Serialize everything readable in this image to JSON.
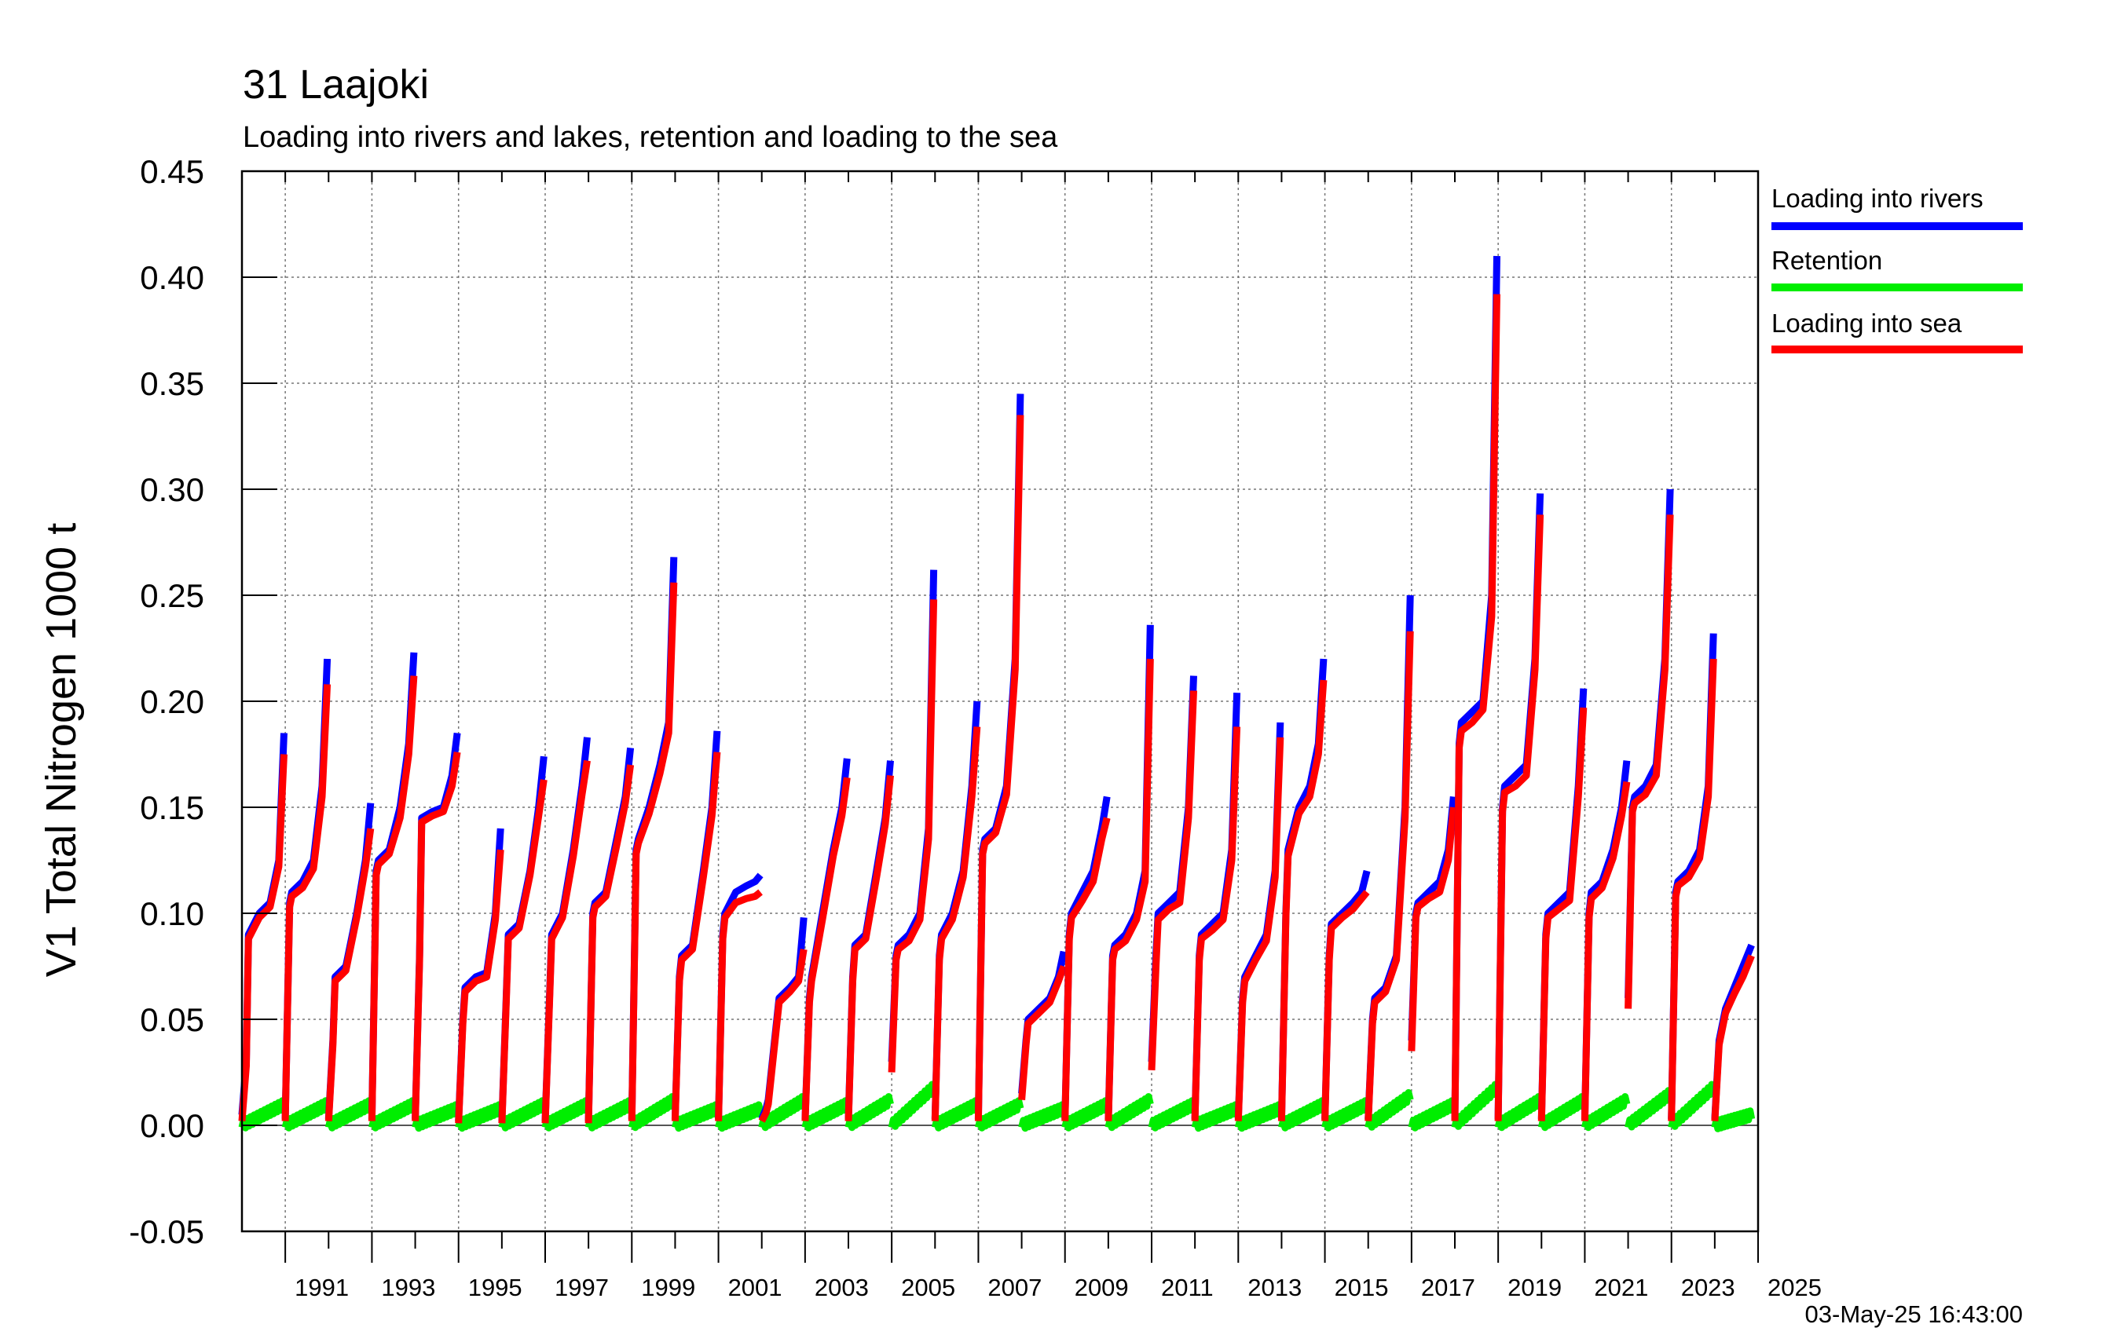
{
  "chart_data": {
    "type": "line",
    "title": "31 Laajoki",
    "subtitle": "Loading into rivers and lakes, retention and loading to the sea",
    "ylabel": "V1 Total Nitrogen 1000 t",
    "xlabel": "",
    "xlim": [
      "1990",
      "2025"
    ],
    "ylim": [
      -0.05,
      0.45
    ],
    "yticks": [
      "0.45",
      "0.40",
      "0.35",
      "0.30",
      "0.25",
      "0.20",
      "0.15",
      "0.10",
      "0.05",
      "0.00",
      "-0.05"
    ],
    "xticks": [
      "1991",
      "1993",
      "1995",
      "1997",
      "1999",
      "2001",
      "2003",
      "2005",
      "2007",
      "2009",
      "2011",
      "2013",
      "2015",
      "2017",
      "2019",
      "2021",
      "2023",
      "2025"
    ],
    "grid": true,
    "legend_position": "right",
    "timestamp": "03-May-25 16:43:00",
    "series": [
      {
        "name": "Loading into rivers",
        "color": "#0000ff"
      },
      {
        "name": "Retention",
        "color": "#00ee00"
      },
      {
        "name": "Loading into sea",
        "color": "#ff0000"
      }
    ],
    "annual_profiles": [
      {
        "year": 1990,
        "rivers": [
          0.005,
          0.03,
          0.09,
          0.1,
          0.105,
          0.125,
          0.185
        ],
        "sea": [
          0.002,
          0.028,
          0.088,
          0.098,
          0.103,
          0.122,
          0.175
        ],
        "ret_end": 0.01
      },
      {
        "year": 1991,
        "rivers": [
          0.003,
          0.105,
          0.11,
          0.115,
          0.125,
          0.16,
          0.22
        ],
        "sea": [
          0.002,
          0.103,
          0.108,
          0.112,
          0.121,
          0.155,
          0.208
        ],
        "ret_end": 0.01
      },
      {
        "year": 1992,
        "rivers": [
          0.003,
          0.04,
          0.07,
          0.075,
          0.1,
          0.125,
          0.152
        ],
        "sea": [
          0.002,
          0.038,
          0.068,
          0.073,
          0.098,
          0.122,
          0.14
        ],
        "ret_end": 0.01
      },
      {
        "year": 1993,
        "rivers": [
          0.003,
          0.12,
          0.125,
          0.13,
          0.15,
          0.18,
          0.223
        ],
        "sea": [
          0.002,
          0.118,
          0.123,
          0.128,
          0.145,
          0.175,
          0.212
        ],
        "ret_end": 0.01
      },
      {
        "year": 1994,
        "rivers": [
          0.003,
          0.08,
          0.145,
          0.148,
          0.15,
          0.165,
          0.185
        ],
        "sea": [
          0.002,
          0.078,
          0.143,
          0.146,
          0.148,
          0.16,
          0.176
        ],
        "ret_end": 0.008
      },
      {
        "year": 1995,
        "rivers": [
          0.002,
          0.05,
          0.065,
          0.07,
          0.072,
          0.1,
          0.14
        ],
        "sea": [
          0.001,
          0.048,
          0.063,
          0.068,
          0.07,
          0.097,
          0.13
        ],
        "ret_end": 0.008
      },
      {
        "year": 1996,
        "rivers": [
          0.002,
          0.06,
          0.09,
          0.095,
          0.12,
          0.15,
          0.174
        ],
        "sea": [
          0.001,
          0.058,
          0.088,
          0.093,
          0.118,
          0.146,
          0.163
        ],
        "ret_end": 0.01
      },
      {
        "year": 1997,
        "rivers": [
          0.002,
          0.06,
          0.09,
          0.1,
          0.13,
          0.16,
          0.183
        ],
        "sea": [
          0.001,
          0.058,
          0.088,
          0.098,
          0.127,
          0.156,
          0.172
        ],
        "ret_end": 0.01
      },
      {
        "year": 1998,
        "rivers": [
          0.002,
          0.1,
          0.105,
          0.11,
          0.135,
          0.155,
          0.178
        ],
        "sea": [
          0.001,
          0.098,
          0.103,
          0.108,
          0.132,
          0.152,
          0.17
        ],
        "ret_end": 0.01
      },
      {
        "year": 1999,
        "rivers": [
          0.003,
          0.13,
          0.135,
          0.15,
          0.17,
          0.19,
          0.268
        ],
        "sea": [
          0.002,
          0.128,
          0.133,
          0.147,
          0.166,
          0.185,
          0.256
        ],
        "ret_end": 0.012
      },
      {
        "year": 2000,
        "rivers": [
          0.003,
          0.07,
          0.08,
          0.085,
          0.12,
          0.15,
          0.186
        ],
        "sea": [
          0.002,
          0.068,
          0.078,
          0.083,
          0.117,
          0.146,
          0.176
        ],
        "ret_end": 0.008
      },
      {
        "year": 2001,
        "rivers": [
          0.003,
          0.09,
          0.1,
          0.11,
          0.113,
          0.115,
          0.118
        ],
        "sea": [
          0.002,
          0.088,
          0.098,
          0.105,
          0.107,
          0.108,
          0.11
        ],
        "ret_end": 0.008
      },
      {
        "year": 2002,
        "rivers": [
          0.003,
          0.008,
          0.012,
          0.06,
          0.065,
          0.07,
          0.098
        ],
        "sea": [
          0.002,
          0.006,
          0.01,
          0.058,
          0.063,
          0.068,
          0.083
        ],
        "ret_end": 0.012
      },
      {
        "year": 2003,
        "rivers": [
          0.003,
          0.06,
          0.07,
          0.1,
          0.13,
          0.15,
          0.173
        ],
        "sea": [
          0.002,
          0.058,
          0.068,
          0.097,
          0.127,
          0.146,
          0.164
        ],
        "ret_end": 0.01
      },
      {
        "year": 2004,
        "rivers": [
          0.003,
          0.07,
          0.085,
          0.09,
          0.12,
          0.145,
          0.172
        ],
        "sea": [
          0.002,
          0.068,
          0.083,
          0.088,
          0.117,
          0.142,
          0.165
        ],
        "ret_end": 0.012
      },
      {
        "year": 2005,
        "rivers": [
          0.03,
          0.08,
          0.085,
          0.09,
          0.1,
          0.14,
          0.262
        ],
        "sea": [
          0.025,
          0.078,
          0.083,
          0.087,
          0.097,
          0.135,
          0.248
        ],
        "ret_end": 0.018
      },
      {
        "year": 2006,
        "rivers": [
          0.003,
          0.08,
          0.09,
          0.1,
          0.12,
          0.16,
          0.2
        ],
        "sea": [
          0.002,
          0.078,
          0.088,
          0.097,
          0.117,
          0.155,
          0.188
        ],
        "ret_end": 0.01
      },
      {
        "year": 2007,
        "rivers": [
          0.003,
          0.13,
          0.135,
          0.14,
          0.16,
          0.22,
          0.345
        ],
        "sea": [
          0.002,
          0.128,
          0.133,
          0.138,
          0.156,
          0.215,
          0.335
        ],
        "ret_end": 0.01
      },
      {
        "year": 2008,
        "rivers": [
          0.015,
          0.04,
          0.05,
          0.055,
          0.06,
          0.07,
          0.082
        ],
        "sea": [
          0.012,
          0.038,
          0.048,
          0.053,
          0.058,
          0.068,
          0.075
        ],
        "ret_end": 0.008
      },
      {
        "year": 2009,
        "rivers": [
          0.003,
          0.09,
          0.1,
          0.11,
          0.12,
          0.14,
          0.155
        ],
        "sea": [
          0.002,
          0.088,
          0.098,
          0.106,
          0.115,
          0.135,
          0.145
        ],
        "ret_end": 0.01
      },
      {
        "year": 2010,
        "rivers": [
          0.003,
          0.08,
          0.085,
          0.09,
          0.1,
          0.12,
          0.236
        ],
        "sea": [
          0.002,
          0.078,
          0.083,
          0.087,
          0.097,
          0.115,
          0.22
        ],
        "ret_end": 0.012
      },
      {
        "year": 2011,
        "rivers": [
          0.03,
          0.08,
          0.1,
          0.105,
          0.11,
          0.15,
          0.212
        ],
        "sea": [
          0.026,
          0.075,
          0.097,
          0.102,
          0.105,
          0.145,
          0.205
        ],
        "ret_end": 0.01
      },
      {
        "year": 2012,
        "rivers": [
          0.003,
          0.08,
          0.09,
          0.095,
          0.1,
          0.13,
          0.204
        ],
        "sea": [
          0.002,
          0.078,
          0.088,
          0.092,
          0.097,
          0.125,
          0.188
        ],
        "ret_end": 0.008
      },
      {
        "year": 2013,
        "rivers": [
          0.003,
          0.06,
          0.07,
          0.08,
          0.09,
          0.12,
          0.19
        ],
        "sea": [
          0.002,
          0.058,
          0.068,
          0.078,
          0.087,
          0.117,
          0.183
        ],
        "ret_end": 0.008
      },
      {
        "year": 2014,
        "rivers": [
          0.003,
          0.1,
          0.13,
          0.15,
          0.16,
          0.18,
          0.22
        ],
        "sea": [
          0.002,
          0.098,
          0.127,
          0.147,
          0.155,
          0.175,
          0.21
        ],
        "ret_end": 0.01
      },
      {
        "year": 2015,
        "rivers": [
          0.003,
          0.08,
          0.095,
          0.1,
          0.105,
          0.11,
          0.12
        ],
        "sea": [
          0.002,
          0.078,
          0.093,
          0.098,
          0.102,
          0.107,
          0.11
        ],
        "ret_end": 0.01
      },
      {
        "year": 2016,
        "rivers": [
          0.003,
          0.05,
          0.06,
          0.065,
          0.08,
          0.15,
          0.25
        ],
        "sea": [
          0.002,
          0.048,
          0.058,
          0.063,
          0.078,
          0.145,
          0.233
        ],
        "ret_end": 0.014
      },
      {
        "year": 2017,
        "rivers": [
          0.04,
          0.1,
          0.105,
          0.11,
          0.115,
          0.13,
          0.155
        ],
        "sea": [
          0.035,
          0.098,
          0.103,
          0.107,
          0.11,
          0.125,
          0.15
        ],
        "ret_end": 0.01
      },
      {
        "year": 2018,
        "rivers": [
          0.003,
          0.18,
          0.19,
          0.195,
          0.2,
          0.25,
          0.41
        ],
        "sea": [
          0.002,
          0.178,
          0.186,
          0.19,
          0.196,
          0.24,
          0.392
        ],
        "ret_end": 0.018
      },
      {
        "year": 2019,
        "rivers": [
          0.003,
          0.15,
          0.16,
          0.165,
          0.17,
          0.22,
          0.298
        ],
        "sea": [
          0.002,
          0.148,
          0.157,
          0.16,
          0.165,
          0.215,
          0.288
        ],
        "ret_end": 0.012
      },
      {
        "year": 2020,
        "rivers": [
          0.003,
          0.09,
          0.1,
          0.105,
          0.11,
          0.16,
          0.206
        ],
        "sea": [
          0.002,
          0.088,
          0.098,
          0.102,
          0.106,
          0.155,
          0.197
        ],
        "ret_end": 0.012
      },
      {
        "year": 2021,
        "rivers": [
          0.003,
          0.1,
          0.11,
          0.115,
          0.13,
          0.15,
          0.172
        ],
        "sea": [
          0.002,
          0.098,
          0.107,
          0.112,
          0.126,
          0.146,
          0.162
        ],
        "ret_end": 0.012
      },
      {
        "year": 2022,
        "rivers": [
          0.06,
          0.15,
          0.155,
          0.16,
          0.17,
          0.22,
          0.3
        ],
        "sea": [
          0.055,
          0.148,
          0.152,
          0.156,
          0.165,
          0.215,
          0.288
        ],
        "ret_end": 0.015
      },
      {
        "year": 2023,
        "rivers": [
          0.003,
          0.11,
          0.115,
          0.12,
          0.13,
          0.16,
          0.232
        ],
        "sea": [
          0.002,
          0.108,
          0.113,
          0.117,
          0.126,
          0.155,
          0.22
        ],
        "ret_end": 0.018
      },
      {
        "year": 2024,
        "rivers": [
          0.003,
          0.04,
          0.055,
          0.065,
          0.075,
          0.085
        ],
        "sea": [
          0.002,
          0.038,
          0.053,
          0.062,
          0.07,
          0.08
        ],
        "ret_end": 0.005
      }
    ]
  }
}
